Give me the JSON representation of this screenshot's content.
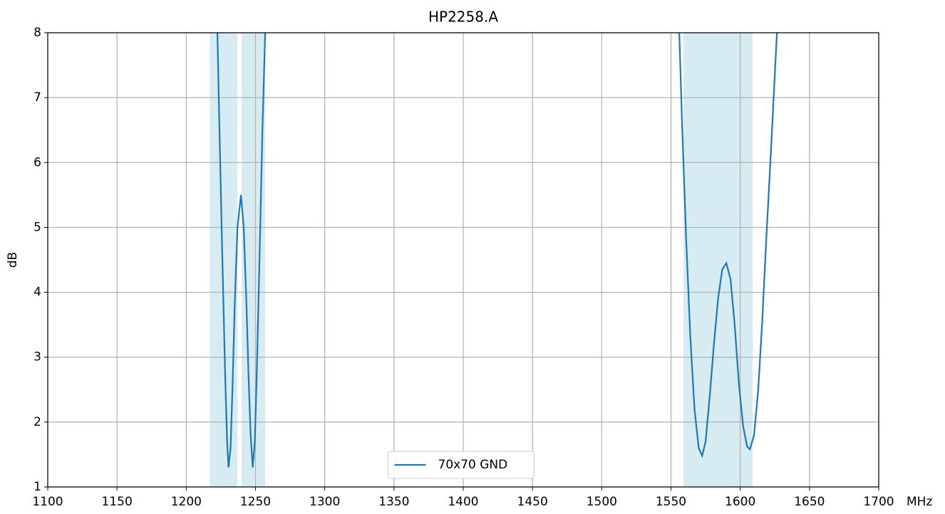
{
  "chart_data": {
    "type": "line",
    "title": "HP2258.A",
    "ylabel": "dB",
    "xlabel": "MHz",
    "xlim": [
      1100,
      1700
    ],
    "xticks": [
      1100,
      1150,
      1200,
      1250,
      1300,
      1350,
      1400,
      1450,
      1500,
      1550,
      1600,
      1650,
      1700
    ],
    "ylim": [
      1,
      8
    ],
    "yticks": [
      1,
      2,
      3,
      4,
      5,
      6,
      7,
      8
    ],
    "grid": true,
    "legend": "lower center",
    "bands": [
      [
        1217,
        1237
      ],
      [
        1240,
        1257
      ],
      [
        1559,
        1609
      ]
    ],
    "band_color": "#add8e6",
    "x": [
      1222.5,
      1224,
      1226,
      1228,
      1229.5,
      1230.5,
      1232,
      1233.5,
      1235,
      1237,
      1239.5,
      1241.5,
      1243.5,
      1245,
      1246.5,
      1248,
      1249.5,
      1251,
      1253,
      1255,
      1257,
      1400,
      1556,
      1558,
      1561,
      1564,
      1567,
      1570,
      1572.5,
      1575,
      1578,
      1581,
      1584,
      1587,
      1590,
      1593,
      1596,
      1599,
      1602,
      1605,
      1607,
      1610,
      1613,
      1616,
      1619,
      1622,
      1626.5
    ],
    "series": [
      {
        "name": "70x70 GND",
        "color": "#1f77b4",
        "values": [
          8,
          6.5,
          4.6,
          2.8,
          1.7,
          1.3,
          1.6,
          2.6,
          3.8,
          5.0,
          5.5,
          5.0,
          3.8,
          2.7,
          1.8,
          1.3,
          1.7,
          2.8,
          4.6,
          6.5,
          8,
          null,
          8,
          6.6,
          4.8,
          3.3,
          2.2,
          1.6,
          1.48,
          1.7,
          2.4,
          3.2,
          3.9,
          4.35,
          4.45,
          4.2,
          3.5,
          2.6,
          1.95,
          1.62,
          1.58,
          1.8,
          2.5,
          3.6,
          4.9,
          6.1,
          8
        ]
      }
    ]
  }
}
